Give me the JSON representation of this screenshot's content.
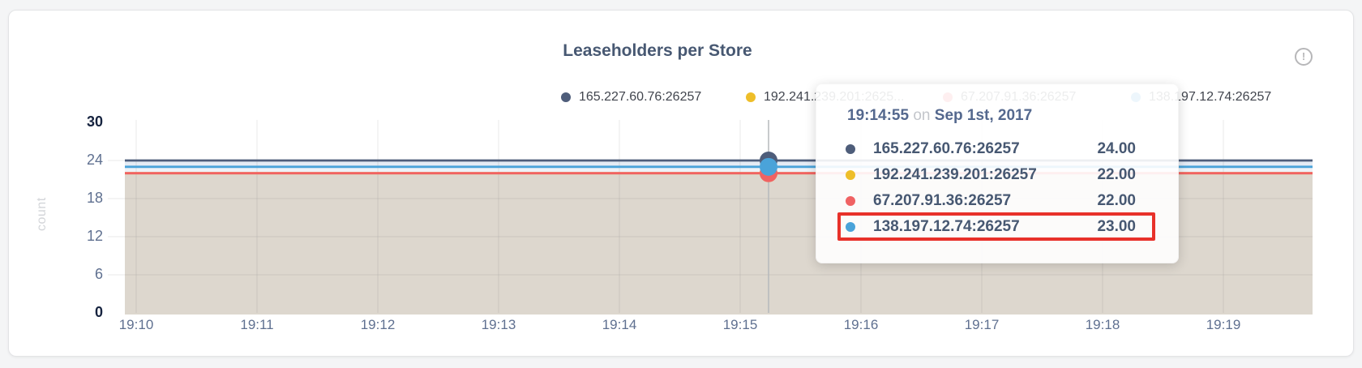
{
  "window": {
    "background": "#f4f5f6"
  },
  "card": {
    "background": "#ffffff",
    "border_color": "#e3e4e6"
  },
  "chart": {
    "title": "Leaseholders per Store",
    "info_icon_glyph": "!",
    "y_axis_label": "count",
    "legend": [
      {
        "label": "165.227.60.76:26257",
        "color": "#4e5d7a"
      },
      {
        "label": "192.241.239.201:2625...",
        "color": "#eebe29"
      },
      {
        "label": "67.207.91.36:26257",
        "color": "#f06263"
      },
      {
        "label": "138.197.12.74:26257",
        "color": "#4aa3d9"
      }
    ]
  },
  "chart_data": {
    "type": "line",
    "title": "Leaseholders per Store",
    "xlabel": "",
    "ylabel": "count",
    "x": [
      "19:10",
      "19:11",
      "19:12",
      "19:13",
      "19:14",
      "19:15",
      "19:16",
      "19:17",
      "19:18",
      "19:19"
    ],
    "series": [
      {
        "name": "165.227.60.76:26257",
        "color": "#4e5d7a",
        "value": 24
      },
      {
        "name": "192.241.239.201:26257",
        "color": "#eebe29",
        "value": 22
      },
      {
        "name": "67.207.91.36:26257",
        "color": "#f06263",
        "value": 22
      },
      {
        "name": "138.197.12.74:26257",
        "color": "#4aa3d9",
        "value": 23
      }
    ],
    "ylim": [
      0,
      30
    ],
    "yticks": [
      0,
      6,
      12,
      18,
      24,
      30
    ],
    "grid": true,
    "legend_position": "top",
    "area_fill_color": "#ddd7ce",
    "hover_marker": {
      "time": "19:14:55",
      "values": [
        24,
        22,
        22,
        23
      ]
    }
  },
  "tooltip": {
    "time": "19:14:55",
    "conj": "on",
    "date": "Sep 1st, 2017",
    "rows": [
      {
        "name": "165.227.60.76:26257",
        "value": "24.00",
        "color": "#4e5d7a",
        "highlighted": false
      },
      {
        "name": "192.241.239.201:26257",
        "value": "22.00",
        "color": "#eebe29",
        "highlighted": false
      },
      {
        "name": "67.207.91.36:26257",
        "value": "22.00",
        "color": "#f06263",
        "highlighted": false
      },
      {
        "name": "138.197.12.74:26257",
        "value": "23.00",
        "color": "#4aa3d9",
        "highlighted": true
      }
    ],
    "highlight_color": "#e8312a"
  }
}
